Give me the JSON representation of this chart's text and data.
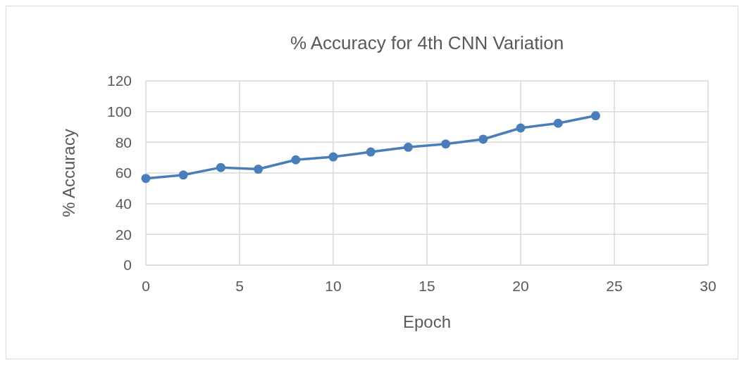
{
  "chart_data": {
    "type": "line",
    "title": "% Accuracy for 4th CNN Variation",
    "xlabel": "Epoch",
    "ylabel": "% Accuracy",
    "x": [
      0,
      2,
      4,
      6,
      8,
      10,
      12,
      14,
      16,
      18,
      20,
      22,
      24
    ],
    "series": [
      {
        "color": "#4a7ebb",
        "values": [
          56.5,
          58.7,
          63.6,
          62.5,
          68.6,
          70.5,
          73.7,
          76.8,
          78.9,
          82,
          89.3,
          92.4,
          97.3
        ]
      }
    ],
    "xlim": [
      0,
      30
    ],
    "xticks": [
      0,
      5,
      10,
      15,
      20,
      25,
      30
    ],
    "ylim": [
      0,
      120
    ],
    "yticks": [
      0,
      20,
      40,
      60,
      80,
      100,
      120
    ],
    "grid": true,
    "marker": "circle",
    "line_style": "solid"
  }
}
